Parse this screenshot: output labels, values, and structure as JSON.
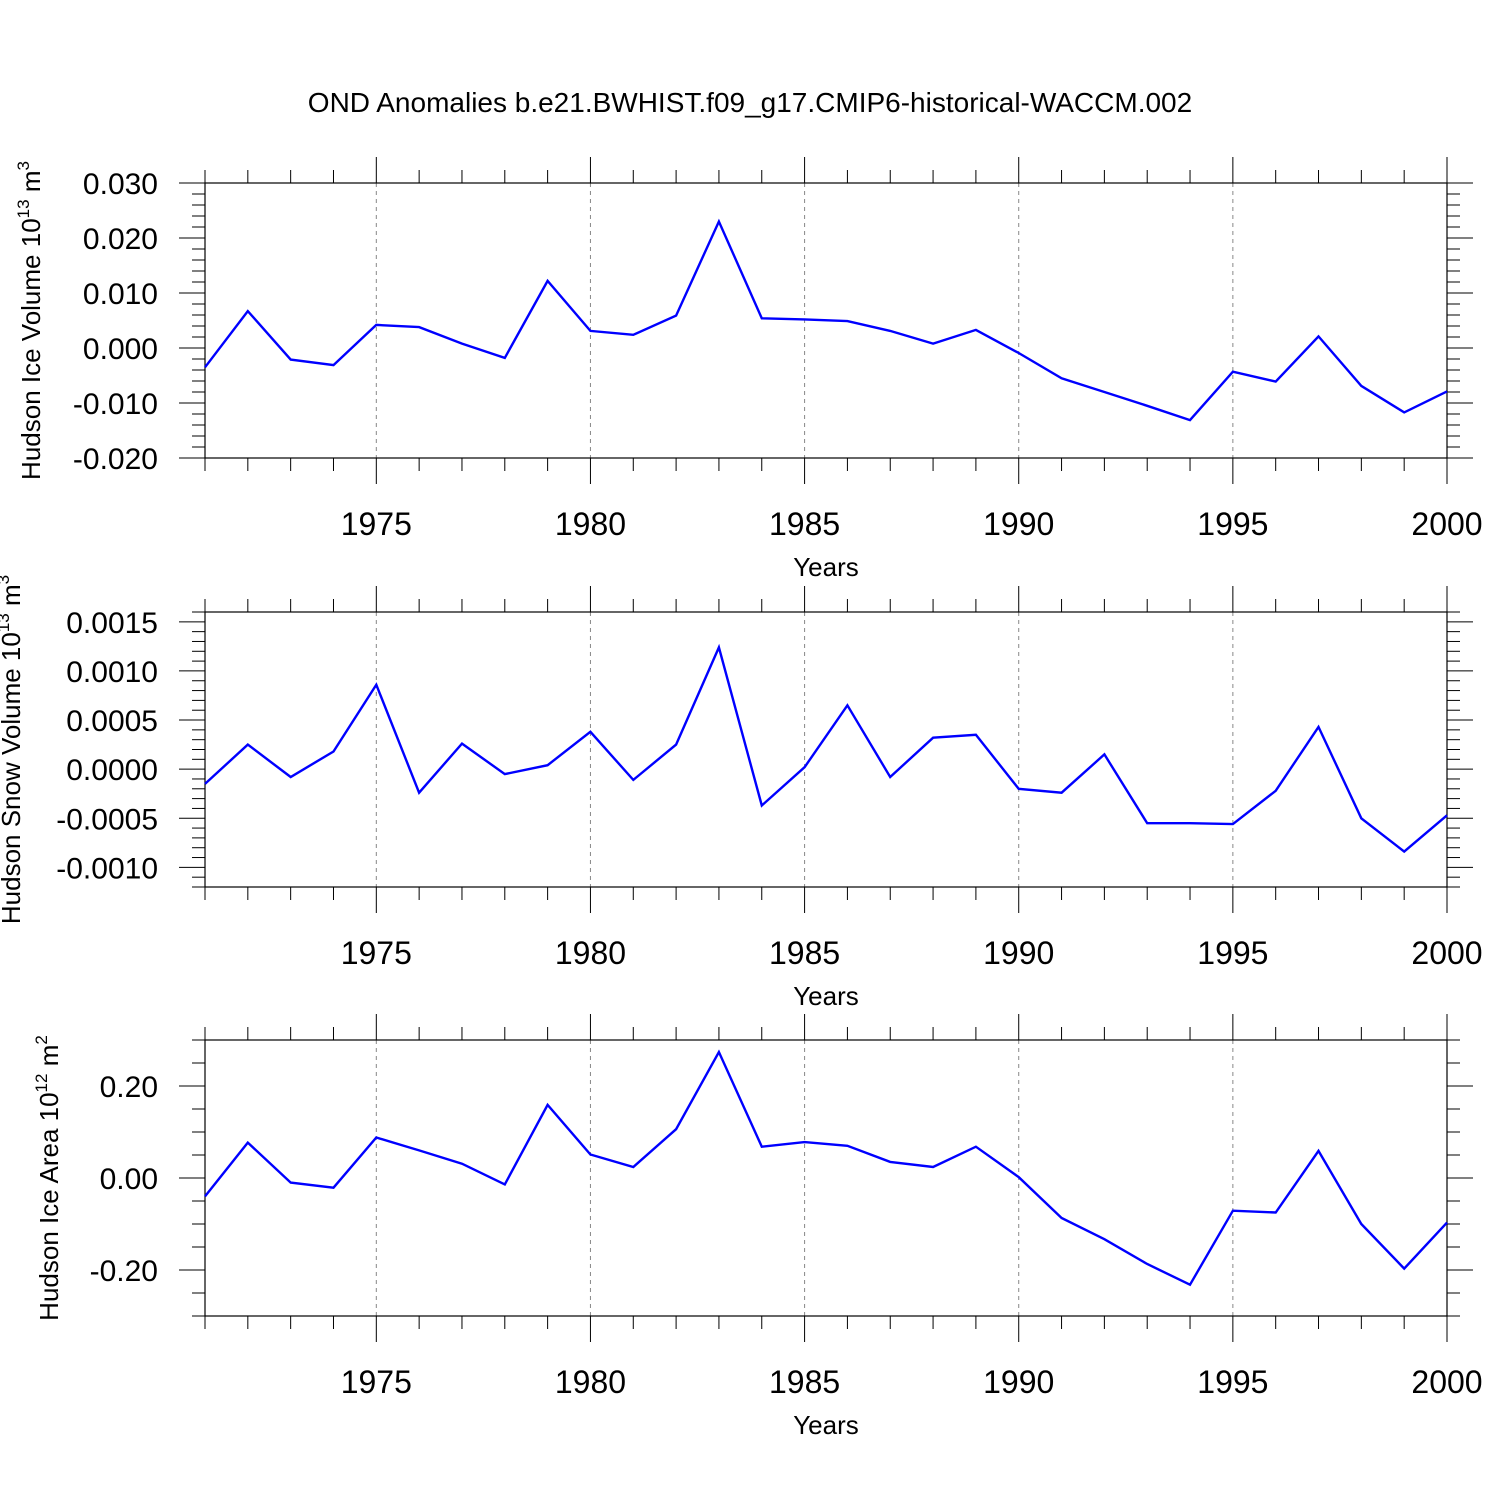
{
  "title": "OND Anomalies b.e21.BWHIST.f09_g17.CMIP6-historical-WACCM.002",
  "colors": {
    "line": "#0000ff",
    "axis": "#000000",
    "grid": "#888888"
  },
  "chart_data": [
    {
      "type": "line",
      "ylabel": "Hudson Ice Volume 10",
      "ylabel_exp": "13",
      "ylabel_unit": " m",
      "ylabel_unit_exp": "3",
      "xlabel": "Years",
      "xlim": [
        1971,
        2000
      ],
      "ylim": [
        -0.02,
        0.03
      ],
      "yticks": [
        -0.02,
        -0.01,
        0.0,
        0.01,
        0.02,
        0.03
      ],
      "ytick_labels": [
        "-0.020",
        "-0.010",
        "0.000",
        "0.010",
        "0.020",
        "0.030"
      ],
      "yminor": 0.002,
      "xticks": [
        1975,
        1980,
        1985,
        1990,
        1995,
        2000
      ],
      "xtick_labels": [
        "1975",
        "1980",
        "1985",
        "1990",
        "1995",
        "2000"
      ],
      "x": [
        1971,
        1972,
        1973,
        1974,
        1975,
        1976,
        1977,
        1978,
        1979,
        1980,
        1981,
        1982,
        1983,
        1984,
        1985,
        1986,
        1987,
        1988,
        1989,
        1990,
        1991,
        1992,
        1993,
        1994,
        1995,
        1996,
        1997,
        1998,
        1999,
        2000
      ],
      "series": [
        {
          "name": "Hudson Ice Volume",
          "values": [
            -0.0035,
            0.0067,
            -0.0021,
            -0.0031,
            0.0042,
            0.0038,
            0.0008,
            -0.0018,
            0.0122,
            0.0031,
            0.0024,
            0.0059,
            0.023,
            0.0054,
            0.0052,
            0.0049,
            0.0031,
            0.0008,
            0.0033,
            -0.0009,
            -0.0055,
            -0.008,
            -0.0105,
            -0.0131,
            -0.0043,
            -0.0061,
            0.0021,
            -0.0069,
            -0.0117,
            -0.0079
          ]
        }
      ]
    },
    {
      "type": "line",
      "ylabel": "Hudson Snow Volume 10",
      "ylabel_exp": "13",
      "ylabel_unit": " m",
      "ylabel_unit_exp": "3",
      "xlabel": "Years",
      "xlim": [
        1971,
        2000
      ],
      "ylim": [
        -0.0012,
        0.0016
      ],
      "yticks": [
        -0.001,
        -0.0005,
        0.0,
        0.0005,
        0.001,
        0.0015
      ],
      "ytick_labels": [
        "-0.0010",
        "-0.0005",
        "0.0000",
        "0.0005",
        "0.0010",
        "0.0015"
      ],
      "yminor": 0.0001,
      "xticks": [
        1975,
        1980,
        1985,
        1990,
        1995,
        2000
      ],
      "xtick_labels": [
        "1975",
        "1980",
        "1985",
        "1990",
        "1995",
        "2000"
      ],
      "x": [
        1971,
        1972,
        1973,
        1974,
        1975,
        1976,
        1977,
        1978,
        1979,
        1980,
        1981,
        1982,
        1983,
        1984,
        1985,
        1986,
        1987,
        1988,
        1989,
        1990,
        1991,
        1992,
        1993,
        1994,
        1995,
        1996,
        1997,
        1998,
        1999,
        2000
      ],
      "series": [
        {
          "name": "Hudson Snow Volume",
          "values": [
            -0.00015,
            0.00025,
            -8e-05,
            0.00018,
            0.00086,
            -0.00024,
            0.00026,
            -5e-05,
            4e-05,
            0.00038,
            -0.00011,
            0.00025,
            0.00124,
            -0.00037,
            2e-05,
            0.00065,
            -8e-05,
            0.00032,
            0.00035,
            -0.0002,
            -0.00024,
            0.00015,
            -0.00055,
            -0.00055,
            -0.00056,
            -0.00022,
            0.00043,
            -0.0005,
            -0.00084,
            -0.00047
          ]
        }
      ]
    },
    {
      "type": "line",
      "ylabel": "Hudson Ice Area 10",
      "ylabel_exp": "12",
      "ylabel_unit": " m",
      "ylabel_unit_exp": "2",
      "xlabel": "Years",
      "xlim": [
        1971,
        2000
      ],
      "ylim": [
        -0.3,
        0.3
      ],
      "yticks": [
        -0.2,
        0.0,
        0.2
      ],
      "ytick_labels": [
        "-0.20",
        "0.00",
        "0.20"
      ],
      "yminor": 0.05,
      "xticks": [
        1975,
        1980,
        1985,
        1990,
        1995,
        2000
      ],
      "xtick_labels": [
        "1975",
        "1980",
        "1985",
        "1990",
        "1995",
        "2000"
      ],
      "x": [
        1971,
        1972,
        1973,
        1974,
        1975,
        1976,
        1977,
        1978,
        1979,
        1980,
        1981,
        1982,
        1983,
        1984,
        1985,
        1986,
        1987,
        1988,
        1989,
        1990,
        1991,
        1992,
        1993,
        1994,
        1995,
        1996,
        1997,
        1998,
        1999,
        2000
      ],
      "series": [
        {
          "name": "Hudson Ice Area",
          "values": [
            -0.04,
            0.077,
            -0.01,
            -0.021,
            0.088,
            0.06,
            0.031,
            -0.014,
            0.159,
            0.051,
            0.024,
            0.106,
            0.274,
            0.068,
            0.078,
            0.07,
            0.035,
            0.024,
            0.068,
            0.002,
            -0.087,
            -0.133,
            -0.187,
            -0.232,
            -0.071,
            -0.075,
            0.059,
            -0.1,
            -0.197,
            -0.097
          ]
        }
      ]
    }
  ]
}
